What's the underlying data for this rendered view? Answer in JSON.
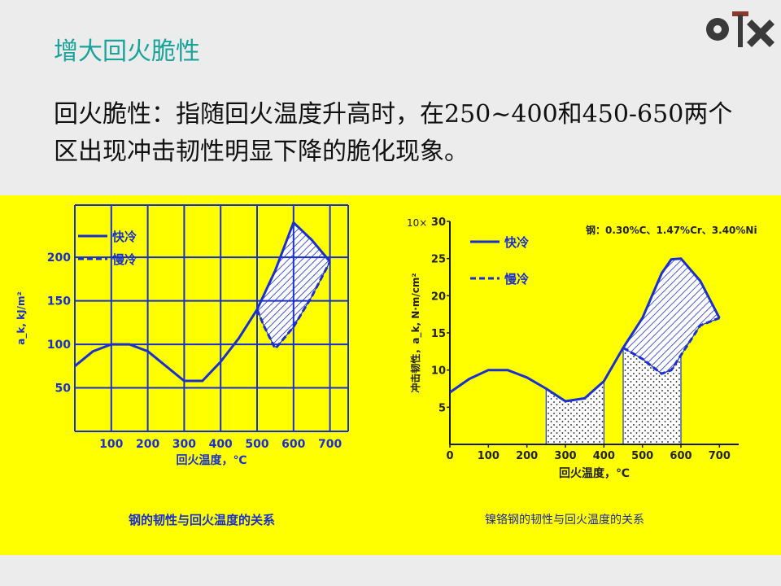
{
  "slide": {
    "title": "增大回火脆性",
    "body": "回火脆性：指随回火温度升高时，在250~400和450-650两个区出现冲击韧性明显下降的脆化现象。"
  },
  "logo": {
    "name": "university-logo-icon"
  },
  "colors": {
    "panel": "#ffff00",
    "blue": "#1a2fd0",
    "title": "#1aa39a"
  },
  "chart_data": [
    {
      "type": "line",
      "caption": "钢的韧性与回火温度的关系",
      "xlabel": "回火温度，℃",
      "ylabel": "a_k, kJ/m²",
      "x_ticks": [
        100,
        200,
        300,
        400,
        500,
        600,
        700
      ],
      "y_ticks": [
        50,
        100,
        150,
        200
      ],
      "xlim": [
        0,
        750
      ],
      "ylim": [
        0,
        260
      ],
      "grid": true,
      "legend": {
        "position": "top-left",
        "entries": [
          "快冷",
          "慢冷"
        ]
      },
      "series": [
        {
          "name": "快冷",
          "style": "solid",
          "x": [
            0,
            50,
            100,
            150,
            200,
            250,
            300,
            350,
            400,
            450,
            500,
            550,
            600,
            650,
            700
          ],
          "y": [
            75,
            92,
            100,
            100,
            92,
            75,
            58,
            58,
            80,
            107,
            140,
            185,
            240,
            220,
            195
          ]
        },
        {
          "name": "慢冷",
          "style": "dashed",
          "x": [
            500,
            520,
            550,
            600,
            650,
            700
          ],
          "y": [
            140,
            120,
            95,
            120,
            155,
            195
          ]
        }
      ],
      "shaded_region": {
        "x": [
          500,
          700
        ],
        "fill": "hatched"
      }
    },
    {
      "type": "line",
      "caption": "镍铬钢的韧性与回火温度的关系",
      "xlabel": "回火温度，℃",
      "ylabel": "冲击韧性，a_k, N·m/cm²",
      "y_multiplier": "10×",
      "annotation": "钢：0.30%C、1.47%Cr、3.40%Ni",
      "x_ticks": [
        0,
        100,
        200,
        300,
        400,
        500,
        600,
        700
      ],
      "y_ticks": [
        5,
        10,
        15,
        20,
        25,
        30
      ],
      "xlim": [
        0,
        750
      ],
      "ylim": [
        0,
        30
      ],
      "grid": false,
      "legend": {
        "position": "top-left",
        "entries": [
          "快冷",
          "慢冷"
        ]
      },
      "series": [
        {
          "name": "快冷",
          "style": "solid",
          "x": [
            0,
            50,
            100,
            150,
            200,
            250,
            300,
            350,
            400,
            450,
            500,
            550,
            575,
            600,
            650,
            700
          ],
          "y": [
            7,
            8.8,
            10,
            10,
            9,
            7.5,
            5.8,
            6.2,
            8.5,
            13,
            17,
            23,
            24.9,
            25,
            22,
            17
          ]
        },
        {
          "name": "慢冷",
          "style": "dashed",
          "x": [
            450,
            500,
            550,
            575,
            600,
            650,
            700
          ],
          "y": [
            13,
            11.5,
            9.5,
            10,
            12,
            16,
            17
          ]
        }
      ],
      "shaded_regions": [
        {
          "x": [
            250,
            400
          ],
          "fill": "dotted"
        },
        {
          "x": [
            450,
            600
          ],
          "fill": "dotted"
        },
        {
          "x": [
            450,
            700
          ],
          "fill": "hatched"
        }
      ]
    }
  ]
}
